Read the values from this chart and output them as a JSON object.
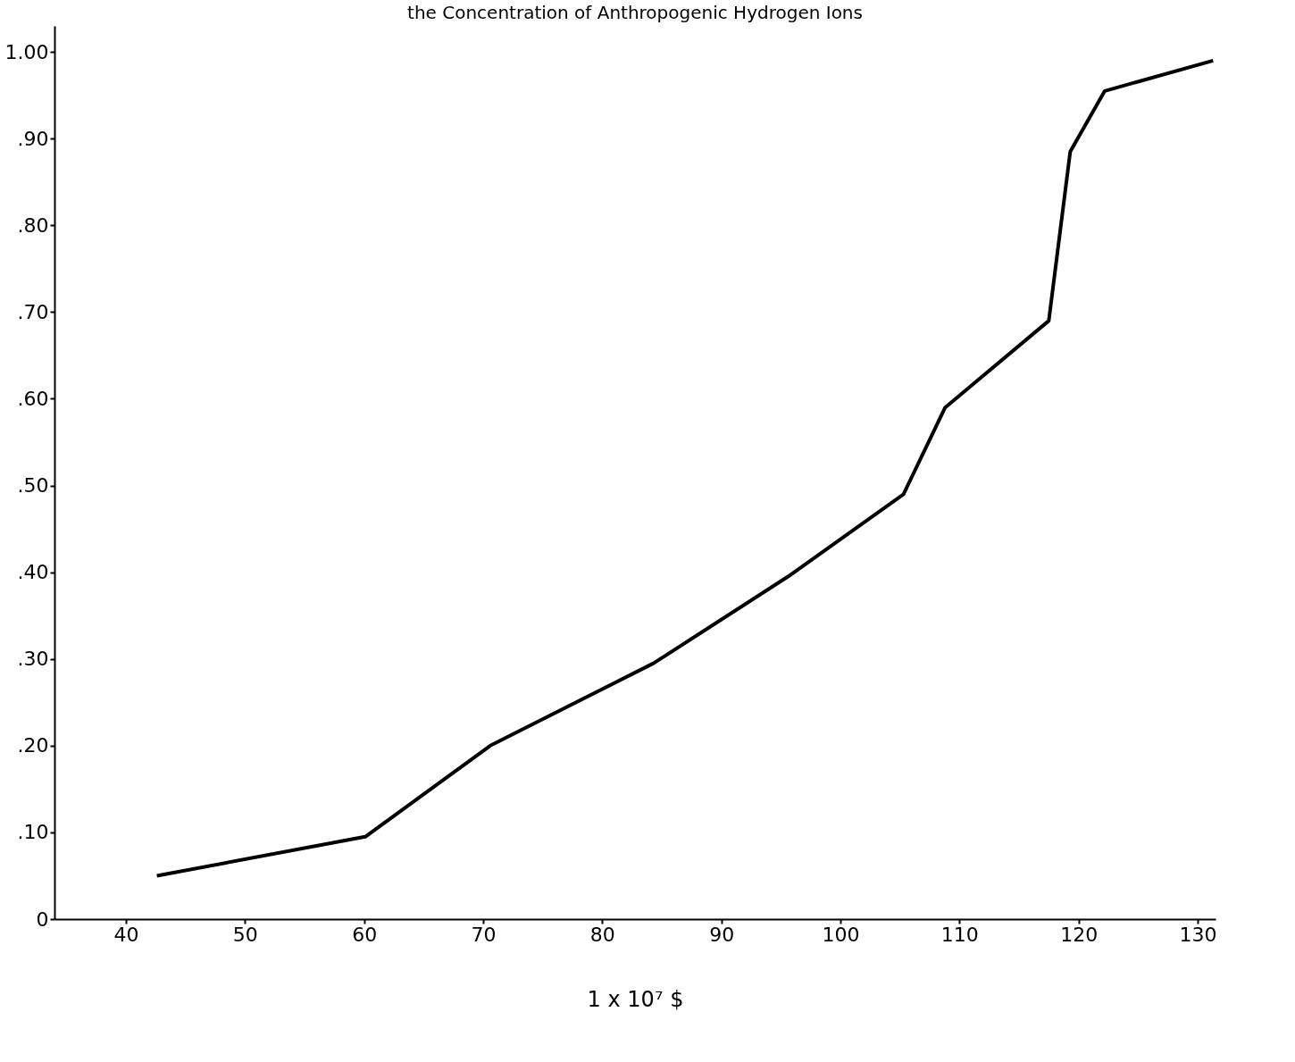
{
  "chart_data": {
    "type": "line",
    "title": "the Concentration of Anthropogenic Hydrogen Ions",
    "xlabel": "1 x 10⁷ $",
    "x": [
      42.6,
      60.1,
      70.6,
      84.3,
      95.6,
      105.3,
      108.8,
      117.5,
      119.3,
      122.2,
      131.3
    ],
    "series": [
      {
        "color": "#000000",
        "values": [
          0.05,
          0.095,
          0.2,
          0.295,
          0.395,
          0.49,
          0.59,
          0.69,
          0.885,
          0.955,
          0.99
        ]
      }
    ],
    "xlim": [
      34,
      131.5
    ],
    "xticks": [
      40,
      50,
      60,
      70,
      80,
      90,
      100,
      110,
      120,
      130
    ],
    "ylim": [
      0,
      1.03
    ],
    "yticks": [
      {
        "value": 0,
        "label": "0"
      },
      {
        "value": 0.1,
        "label": ".10"
      },
      {
        "value": 0.2,
        "label": ".20"
      },
      {
        "value": 0.3,
        "label": ".30"
      },
      {
        "value": 0.4,
        "label": ".40"
      },
      {
        "value": 0.5,
        "label": ".50"
      },
      {
        "value": 0.6,
        "label": ".60"
      },
      {
        "value": 0.7,
        "label": ".70"
      },
      {
        "value": 0.8,
        "label": ".80"
      },
      {
        "value": 0.9,
        "label": ".90"
      },
      {
        "value": 1.0,
        "label": "1.00"
      }
    ],
    "grid": false,
    "marker": "none",
    "line_style": "solid"
  }
}
